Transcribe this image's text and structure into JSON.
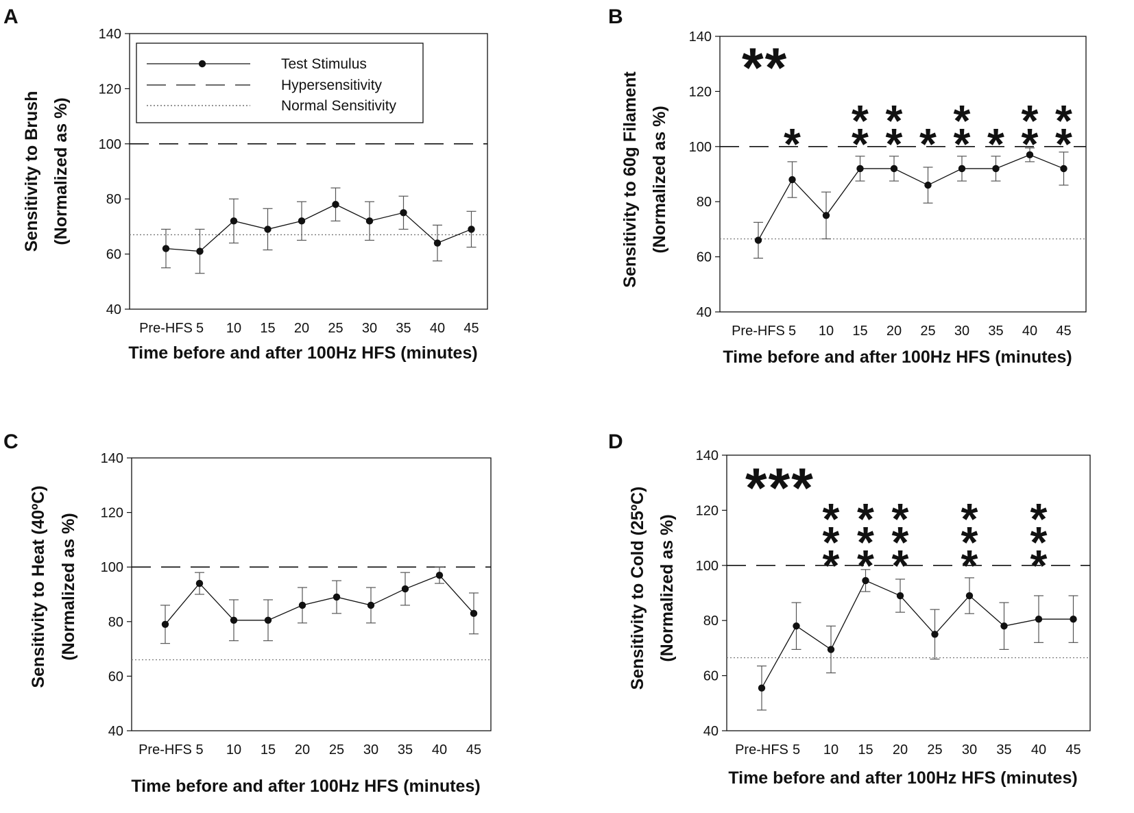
{
  "figure_title": "",
  "styles": {
    "line_color": "#111111",
    "hyper_color": "#111111",
    "normal_color": "#777777"
  },
  "chart_data": [
    {
      "id": "A",
      "panel_label": "A",
      "type": "line",
      "title": "",
      "categories": [
        "Pre-HFS",
        "5",
        "10",
        "15",
        "20",
        "25",
        "30",
        "35",
        "40",
        "45"
      ],
      "xlabel": "Time before and after 100Hz HFS (minutes)",
      "ylabel_lines": [
        "Sensitivity to Brush",
        "(Normalized as %)"
      ],
      "ylim": [
        40,
        140
      ],
      "yticks": [
        40,
        60,
        80,
        100,
        120,
        140
      ],
      "series": [
        {
          "name": "Test Stimulus",
          "values": [
            62,
            61,
            72,
            69,
            72,
            78,
            72,
            75,
            64,
            69
          ],
          "err": [
            7,
            8,
            8,
            7.5,
            7,
            6,
            7,
            6,
            6.5,
            6.5
          ]
        }
      ],
      "hypersensitivity": 100,
      "normal_sensitivity": 67,
      "legend": {
        "position": "top-left",
        "items": [
          {
            "label": "Test Stimulus",
            "style": "marker-line"
          },
          {
            "label": "Hypersensitivity",
            "style": "dashed"
          },
          {
            "label": "Normal Sensitivity",
            "style": "dotted"
          }
        ]
      },
      "annotations": []
    },
    {
      "id": "B",
      "panel_label": "B",
      "type": "line",
      "title": "",
      "categories": [
        "Pre-HFS",
        "5",
        "10",
        "15",
        "20",
        "25",
        "30",
        "35",
        "40",
        "45"
      ],
      "xlabel": "Time before and after 100Hz HFS (minutes)",
      "ylabel_lines": [
        "Sensitivity   to 60g Filament",
        "(Normalized as %)"
      ],
      "ylim": [
        40,
        140
      ],
      "yticks": [
        40,
        60,
        80,
        100,
        120,
        140
      ],
      "series": [
        {
          "name": "Test Stimulus",
          "values": [
            66,
            88,
            75,
            92,
            92,
            86,
            92,
            92,
            97,
            92
          ],
          "err": [
            6.5,
            6.5,
            8.5,
            4.5,
            4.5,
            6.5,
            4.5,
            4.5,
            2.5,
            6
          ]
        }
      ],
      "hypersensitivity": 100,
      "normal_sensitivity": 66.5,
      "legend": null,
      "key_annotation": "**",
      "annotations": [
        {
          "category": "5",
          "text": "*"
        },
        {
          "category": "15",
          "text": "**"
        },
        {
          "category": "20",
          "text": "**"
        },
        {
          "category": "25",
          "text": "*"
        },
        {
          "category": "30",
          "text": "**"
        },
        {
          "category": "35",
          "text": "*"
        },
        {
          "category": "40",
          "text": "**"
        },
        {
          "category": "45",
          "text": "**"
        }
      ]
    },
    {
      "id": "C",
      "panel_label": "C",
      "type": "line",
      "title": "",
      "categories": [
        "Pre-HFS",
        "5",
        "10",
        "15",
        "20",
        "25",
        "30",
        "35",
        "40",
        "45"
      ],
      "xlabel": "Time before and after 100Hz HFS (minutes)",
      "ylabel_lines": [
        "Sensitivity to Heat (40ºC)",
        "(Normalized as %)"
      ],
      "ylim": [
        40,
        140
      ],
      "yticks": [
        40,
        60,
        80,
        100,
        120,
        140
      ],
      "series": [
        {
          "name": "Test Stimulus",
          "values": [
            79,
            94,
            80.5,
            80.5,
            86,
            89,
            86,
            92,
            97,
            83
          ],
          "err": [
            7,
            4,
            7.5,
            7.5,
            6.5,
            6,
            6.5,
            6,
            3,
            7.5
          ]
        }
      ],
      "hypersensitivity": 100,
      "normal_sensitivity": 66,
      "legend": null,
      "annotations": []
    },
    {
      "id": "D",
      "panel_label": "D",
      "type": "line",
      "title": "",
      "categories": [
        "Pre-HFS",
        "5",
        "10",
        "15",
        "20",
        "25",
        "30",
        "35",
        "40",
        "45"
      ],
      "xlabel": "Time before and after 100Hz HFS (minutes)",
      "ylabel_lines": [
        "Sensitivity to Cold (25ºC)",
        "(Normalized as %)"
      ],
      "ylim": [
        40,
        140
      ],
      "yticks": [
        40,
        60,
        80,
        100,
        120,
        140
      ],
      "series": [
        {
          "name": "Test Stimulus",
          "values": [
            55.5,
            78,
            69.5,
            94.5,
            89,
            75,
            89,
            78,
            80.5,
            80.5
          ],
          "err": [
            8,
            8.5,
            8.5,
            4,
            6,
            9,
            6.5,
            8.5,
            8.5,
            8.5
          ]
        }
      ],
      "hypersensitivity": 100,
      "normal_sensitivity": 66.5,
      "legend": null,
      "key_annotation": "***",
      "annotations": [
        {
          "category": "10",
          "text": "***"
        },
        {
          "category": "15",
          "text": "***"
        },
        {
          "category": "20",
          "text": "***"
        },
        {
          "category": "30",
          "text": "***"
        },
        {
          "category": "40",
          "text": "***"
        }
      ]
    }
  ]
}
